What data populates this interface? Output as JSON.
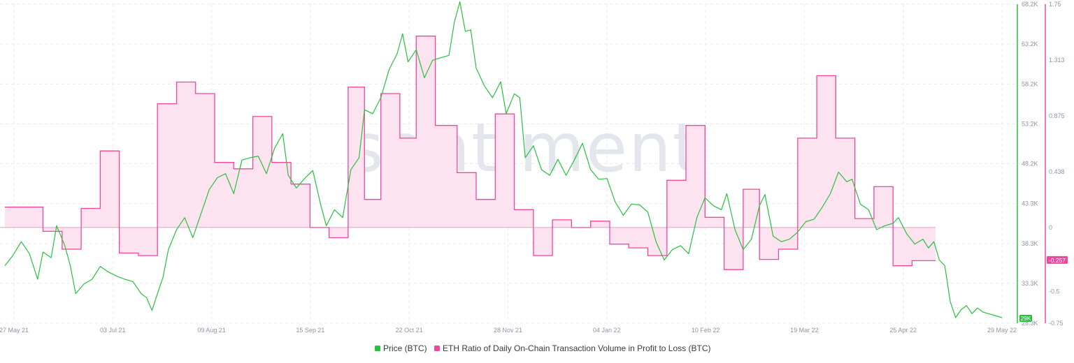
{
  "watermark": "santiment",
  "colors": {
    "price": "#26c23f",
    "ratio": "#f0469c",
    "ratio_fill": "#fde2ef",
    "grid": "#e8eaf0",
    "tick": "#8d94a6"
  },
  "chart_data": {
    "type": "line",
    "x_ticks": [
      "27 May 21",
      "03 Jul 21",
      "09 Aug 21",
      "15 Sep 21",
      "22 Oct 21",
      "28 Nov 21",
      "04 Jan 22",
      "10 Feb 22",
      "19 Mar 22",
      "25 Apr 22",
      "29 May 22"
    ],
    "y_left_ticks": [
      "68.2K",
      "63.2K",
      "58.2K",
      "53.2K",
      "48.2K",
      "43.3K",
      "38.3K",
      "33.3K",
      "28.3K"
    ],
    "y_left_range": [
      28300,
      68200
    ],
    "y_right_ticks": [
      "1.75",
      "1.313",
      "0.875",
      "0.438",
      "0",
      "-0.5",
      "-0.75"
    ],
    "y_right_range": [
      -0.75,
      1.75
    ],
    "grid": true,
    "legend_position": "bottom-center",
    "last_values": {
      "price": "29K",
      "ratio": "-0.257"
    },
    "series": [
      {
        "name": "Price (BTC)",
        "axis": "left",
        "interpolation": "linear",
        "points": [
          [
            "2021-05-27",
            35500
          ],
          [
            "2021-05-30",
            36800
          ],
          [
            "2021-06-02",
            38500
          ],
          [
            "2021-06-05",
            37000
          ],
          [
            "2021-06-08",
            33800
          ],
          [
            "2021-06-10",
            37200
          ],
          [
            "2021-06-13",
            36500
          ],
          [
            "2021-06-15",
            40500
          ],
          [
            "2021-06-18",
            38000
          ],
          [
            "2021-06-20",
            35500
          ],
          [
            "2021-06-22",
            32000
          ],
          [
            "2021-06-25",
            33200
          ],
          [
            "2021-06-28",
            33800
          ],
          [
            "2021-07-01",
            35400
          ],
          [
            "2021-07-04",
            34700
          ],
          [
            "2021-07-07",
            34200
          ],
          [
            "2021-07-10",
            33800
          ],
          [
            "2021-07-13",
            33500
          ],
          [
            "2021-07-16",
            32000
          ],
          [
            "2021-07-18",
            31500
          ],
          [
            "2021-07-20",
            29900
          ],
          [
            "2021-07-22",
            32000
          ],
          [
            "2021-07-24",
            34000
          ],
          [
            "2021-07-26",
            37500
          ],
          [
            "2021-07-29",
            40000
          ],
          [
            "2021-08-01",
            41500
          ],
          [
            "2021-08-04",
            39000
          ],
          [
            "2021-08-07",
            42000
          ],
          [
            "2021-08-10",
            45000
          ],
          [
            "2021-08-13",
            46500
          ],
          [
            "2021-08-16",
            47000
          ],
          [
            "2021-08-19",
            44500
          ],
          [
            "2021-08-22",
            48700
          ],
          [
            "2021-08-25",
            49000
          ],
          [
            "2021-08-28",
            49200
          ],
          [
            "2021-08-31",
            47000
          ],
          [
            "2021-09-03",
            50200
          ],
          [
            "2021-09-06",
            52000
          ],
          [
            "2021-09-08",
            46800
          ],
          [
            "2021-09-11",
            45200
          ],
          [
            "2021-09-14",
            46400
          ],
          [
            "2021-09-17",
            47400
          ],
          [
            "2021-09-20",
            43000
          ],
          [
            "2021-09-22",
            40500
          ],
          [
            "2021-09-25",
            42500
          ],
          [
            "2021-09-28",
            41500
          ],
          [
            "2021-10-01",
            47500
          ],
          [
            "2021-10-04",
            49000
          ],
          [
            "2021-10-06",
            55000
          ],
          [
            "2021-10-09",
            54500
          ],
          [
            "2021-10-12",
            56500
          ],
          [
            "2021-10-15",
            60000
          ],
          [
            "2021-10-18",
            62000
          ],
          [
            "2021-10-20",
            64500
          ],
          [
            "2021-10-22",
            61000
          ],
          [
            "2021-10-25",
            62500
          ],
          [
            "2021-10-28",
            59000
          ],
          [
            "2021-10-31",
            61200
          ],
          [
            "2021-11-03",
            61500
          ],
          [
            "2021-11-06",
            61800
          ],
          [
            "2021-11-08",
            66000
          ],
          [
            "2021-11-10",
            68500
          ],
          [
            "2021-11-12",
            64800
          ],
          [
            "2021-11-14",
            65000
          ],
          [
            "2021-11-16",
            60200
          ],
          [
            "2021-11-19",
            58000
          ],
          [
            "2021-11-22",
            56500
          ],
          [
            "2021-11-25",
            58500
          ],
          [
            "2021-11-27",
            54500
          ],
          [
            "2021-11-30",
            57000
          ],
          [
            "2021-12-02",
            56500
          ],
          [
            "2021-12-04",
            49000
          ],
          [
            "2021-12-07",
            50500
          ],
          [
            "2021-12-10",
            47500
          ],
          [
            "2021-12-13",
            46800
          ],
          [
            "2021-12-16",
            48800
          ],
          [
            "2021-12-19",
            46800
          ],
          [
            "2021-12-22",
            48700
          ],
          [
            "2021-12-25",
            50800
          ],
          [
            "2021-12-28",
            47500
          ],
          [
            "2021-12-31",
            46300
          ],
          [
            "2022-01-03",
            46400
          ],
          [
            "2022-01-06",
            43500
          ],
          [
            "2022-01-09",
            41800
          ],
          [
            "2022-01-12",
            43200
          ],
          [
            "2022-01-15",
            43100
          ],
          [
            "2022-01-18",
            42200
          ],
          [
            "2022-01-21",
            38500
          ],
          [
            "2022-01-24",
            36200
          ],
          [
            "2022-01-27",
            37500
          ],
          [
            "2022-01-30",
            38000
          ],
          [
            "2022-02-02",
            37000
          ],
          [
            "2022-02-05",
            41500
          ],
          [
            "2022-02-08",
            44000
          ],
          [
            "2022-02-11",
            43000
          ],
          [
            "2022-02-14",
            42500
          ],
          [
            "2022-02-16",
            44500
          ],
          [
            "2022-02-19",
            40000
          ],
          [
            "2022-02-22",
            37500
          ],
          [
            "2022-02-25",
            38800
          ],
          [
            "2022-02-28",
            43000
          ],
          [
            "2022-03-02",
            44400
          ],
          [
            "2022-03-05",
            39200
          ],
          [
            "2022-03-08",
            38500
          ],
          [
            "2022-03-11",
            38800
          ],
          [
            "2022-03-14",
            39700
          ],
          [
            "2022-03-17",
            41000
          ],
          [
            "2022-03-20",
            41300
          ],
          [
            "2022-03-23",
            42800
          ],
          [
            "2022-03-26",
            44500
          ],
          [
            "2022-03-29",
            47200
          ],
          [
            "2022-04-01",
            46000
          ],
          [
            "2022-04-03",
            46300
          ],
          [
            "2022-04-06",
            43200
          ],
          [
            "2022-04-09",
            42500
          ],
          [
            "2022-04-12",
            40000
          ],
          [
            "2022-04-15",
            40500
          ],
          [
            "2022-04-18",
            40800
          ],
          [
            "2022-04-20",
            41500
          ],
          [
            "2022-04-23",
            39500
          ],
          [
            "2022-04-26",
            38200
          ],
          [
            "2022-04-29",
            38800
          ],
          [
            "2022-05-01",
            37700
          ],
          [
            "2022-05-03",
            38500
          ],
          [
            "2022-05-05",
            36200
          ],
          [
            "2022-05-07",
            35500
          ],
          [
            "2022-05-09",
            31000
          ],
          [
            "2022-05-11",
            29000
          ],
          [
            "2022-05-13",
            30000
          ],
          [
            "2022-05-15",
            30500
          ],
          [
            "2022-05-17",
            29500
          ],
          [
            "2022-05-19",
            30200
          ],
          [
            "2022-05-21",
            29700
          ],
          [
            "2022-05-23",
            29500
          ],
          [
            "2022-05-25",
            29300
          ],
          [
            "2022-05-28",
            29000
          ]
        ]
      },
      {
        "name": "ETH Ratio of Daily On-Chain Transaction Volume in Profit to Loss (BTC)",
        "axis": "right",
        "interpolation": "step",
        "baseline": 0,
        "points": [
          [
            "2021-05-27",
            0.16
          ],
          [
            "2021-06-10",
            -0.03
          ],
          [
            "2021-06-17",
            -0.17
          ],
          [
            "2021-06-24",
            0.15
          ],
          [
            "2021-07-01",
            0.6
          ],
          [
            "2021-07-08",
            -0.2
          ],
          [
            "2021-07-15",
            -0.22
          ],
          [
            "2021-07-22",
            0.97
          ],
          [
            "2021-07-29",
            1.14
          ],
          [
            "2021-08-05",
            1.05
          ],
          [
            "2021-08-12",
            0.51
          ],
          [
            "2021-08-19",
            0.46
          ],
          [
            "2021-08-26",
            0.87
          ],
          [
            "2021-09-02",
            0.51
          ],
          [
            "2021-09-09",
            0.34
          ],
          [
            "2021-09-16",
            0.0
          ],
          [
            "2021-09-23",
            -0.08
          ],
          [
            "2021-09-30",
            1.1
          ],
          [
            "2021-10-06",
            0.22
          ],
          [
            "2021-10-12",
            1.05
          ],
          [
            "2021-10-19",
            0.7
          ],
          [
            "2021-10-25",
            1.5
          ],
          [
            "2021-11-01",
            0.8
          ],
          [
            "2021-11-09",
            0.43
          ],
          [
            "2021-11-16",
            0.22
          ],
          [
            "2021-11-23",
            0.89
          ],
          [
            "2021-11-30",
            0.14
          ],
          [
            "2021-12-07",
            -0.22
          ],
          [
            "2021-12-14",
            0.06
          ],
          [
            "2021-12-21",
            0.0
          ],
          [
            "2021-12-28",
            0.05
          ],
          [
            "2022-01-04",
            -0.13
          ],
          [
            "2022-01-11",
            -0.16
          ],
          [
            "2022-01-18",
            -0.22
          ],
          [
            "2022-01-25",
            0.37
          ],
          [
            "2022-02-01",
            0.8
          ],
          [
            "2022-02-08",
            0.08
          ],
          [
            "2022-02-15",
            -0.33
          ],
          [
            "2022-02-22",
            0.3
          ],
          [
            "2022-02-28",
            -0.25
          ],
          [
            "2022-03-07",
            -0.17
          ],
          [
            "2022-03-14",
            0.7
          ],
          [
            "2022-03-21",
            1.19
          ],
          [
            "2022-03-28",
            0.7
          ],
          [
            "2022-04-04",
            0.07
          ],
          [
            "2022-04-11",
            0.32
          ],
          [
            "2022-04-18",
            -0.3
          ],
          [
            "2022-04-25",
            -0.26
          ],
          [
            "2022-05-02",
            -0.26
          ]
        ]
      }
    ]
  },
  "legend": {
    "price_label": "Price (BTC)",
    "ratio_label": "ETH Ratio of Daily On-Chain Transaction Volume in Profit to Loss (BTC)"
  }
}
